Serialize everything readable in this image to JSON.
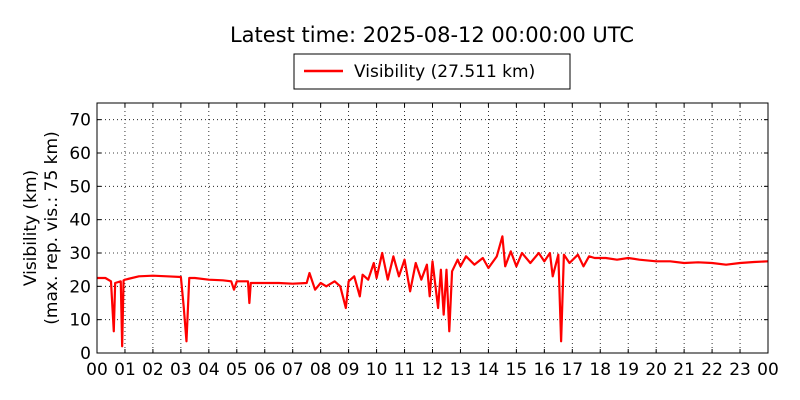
{
  "chart_data": {
    "type": "line",
    "title": "Latest time: 2025-08-12 00:00:00 UTC",
    "ylabel_line1": "Visibility (km)",
    "ylabel_line2": "(max. rep. vis.: 75 km)",
    "xlabel": "",
    "xlim": [
      0,
      24
    ],
    "ylim": [
      0,
      75
    ],
    "x_ticks": [
      0,
      1,
      2,
      3,
      4,
      5,
      6,
      7,
      8,
      9,
      10,
      11,
      12,
      13,
      14,
      15,
      16,
      17,
      18,
      19,
      20,
      21,
      22,
      23,
      24
    ],
    "x_tick_labels": [
      "00",
      "01",
      "02",
      "03",
      "04",
      "05",
      "06",
      "07",
      "08",
      "09",
      "10",
      "11",
      "12",
      "13",
      "14",
      "15",
      "16",
      "17",
      "18",
      "19",
      "20",
      "21",
      "22",
      "23",
      "00"
    ],
    "y_ticks": [
      0,
      10,
      20,
      30,
      40,
      50,
      60,
      70
    ],
    "y_tick_labels": [
      "0",
      "10",
      "20",
      "30",
      "40",
      "50",
      "60",
      "70"
    ],
    "grid": true,
    "legend_position": "top-center",
    "series": [
      {
        "name": "Visibility (27.511 km)",
        "color": "#ff0000",
        "points": [
          [
            0.0,
            22.5
          ],
          [
            0.3,
            22.5
          ],
          [
            0.5,
            21.5
          ],
          [
            0.6,
            6.5
          ],
          [
            0.65,
            21.0
          ],
          [
            0.85,
            21.5
          ],
          [
            0.9,
            2.0
          ],
          [
            0.95,
            21.8
          ],
          [
            1.0,
            22.0
          ],
          [
            1.5,
            23.0
          ],
          [
            2.0,
            23.2
          ],
          [
            2.5,
            23.0
          ],
          [
            3.0,
            22.8
          ],
          [
            3.1,
            14.0
          ],
          [
            3.2,
            3.5
          ],
          [
            3.3,
            22.5
          ],
          [
            3.5,
            22.5
          ],
          [
            4.0,
            22.0
          ],
          [
            4.5,
            21.8
          ],
          [
            4.8,
            21.5
          ],
          [
            4.9,
            19.0
          ],
          [
            5.0,
            21.5
          ],
          [
            5.4,
            21.5
          ],
          [
            5.45,
            15.0
          ],
          [
            5.5,
            21.0
          ],
          [
            6.0,
            21.0
          ],
          [
            6.5,
            21.0
          ],
          [
            7.0,
            20.8
          ],
          [
            7.5,
            21.0
          ],
          [
            7.6,
            24.0
          ],
          [
            7.8,
            19.0
          ],
          [
            8.0,
            21.0
          ],
          [
            8.2,
            20.0
          ],
          [
            8.5,
            21.5
          ],
          [
            8.7,
            20.0
          ],
          [
            8.9,
            13.5
          ],
          [
            9.0,
            21.5
          ],
          [
            9.2,
            23.0
          ],
          [
            9.4,
            17.0
          ],
          [
            9.5,
            23.5
          ],
          [
            9.7,
            22.0
          ],
          [
            9.9,
            27.0
          ],
          [
            10.0,
            22.5
          ],
          [
            10.2,
            30.0
          ],
          [
            10.4,
            22.0
          ],
          [
            10.6,
            29.0
          ],
          [
            10.8,
            23.0
          ],
          [
            11.0,
            28.0
          ],
          [
            11.2,
            18.5
          ],
          [
            11.4,
            27.0
          ],
          [
            11.6,
            22.0
          ],
          [
            11.8,
            26.5
          ],
          [
            11.9,
            17.0
          ],
          [
            12.0,
            27.5
          ],
          [
            12.2,
            13.5
          ],
          [
            12.3,
            25.0
          ],
          [
            12.4,
            11.5
          ],
          [
            12.5,
            25.0
          ],
          [
            12.6,
            6.5
          ],
          [
            12.7,
            24.5
          ],
          [
            12.9,
            28.0
          ],
          [
            13.0,
            26.0
          ],
          [
            13.2,
            29.0
          ],
          [
            13.5,
            26.5
          ],
          [
            13.8,
            28.5
          ],
          [
            14.0,
            25.5
          ],
          [
            14.3,
            29.0
          ],
          [
            14.5,
            35.0
          ],
          [
            14.6,
            26.0
          ],
          [
            14.8,
            30.5
          ],
          [
            15.0,
            26.0
          ],
          [
            15.2,
            30.0
          ],
          [
            15.5,
            27.0
          ],
          [
            15.8,
            30.0
          ],
          [
            16.0,
            27.5
          ],
          [
            16.2,
            30.0
          ],
          [
            16.3,
            23.0
          ],
          [
            16.5,
            29.5
          ],
          [
            16.6,
            3.5
          ],
          [
            16.7,
            29.5
          ],
          [
            16.9,
            27.0
          ],
          [
            17.2,
            29.5
          ],
          [
            17.4,
            26.0
          ],
          [
            17.6,
            29.0
          ],
          [
            17.8,
            28.5
          ],
          [
            18.2,
            28.5
          ],
          [
            18.6,
            28.0
          ],
          [
            19.0,
            28.5
          ],
          [
            19.4,
            28.0
          ],
          [
            20.0,
            27.5
          ],
          [
            20.5,
            27.5
          ],
          [
            21.0,
            27.0
          ],
          [
            21.5,
            27.2
          ],
          [
            22.0,
            27.0
          ],
          [
            22.5,
            26.5
          ],
          [
            23.0,
            27.0
          ],
          [
            23.5,
            27.3
          ],
          [
            24.0,
            27.5
          ]
        ]
      }
    ]
  }
}
